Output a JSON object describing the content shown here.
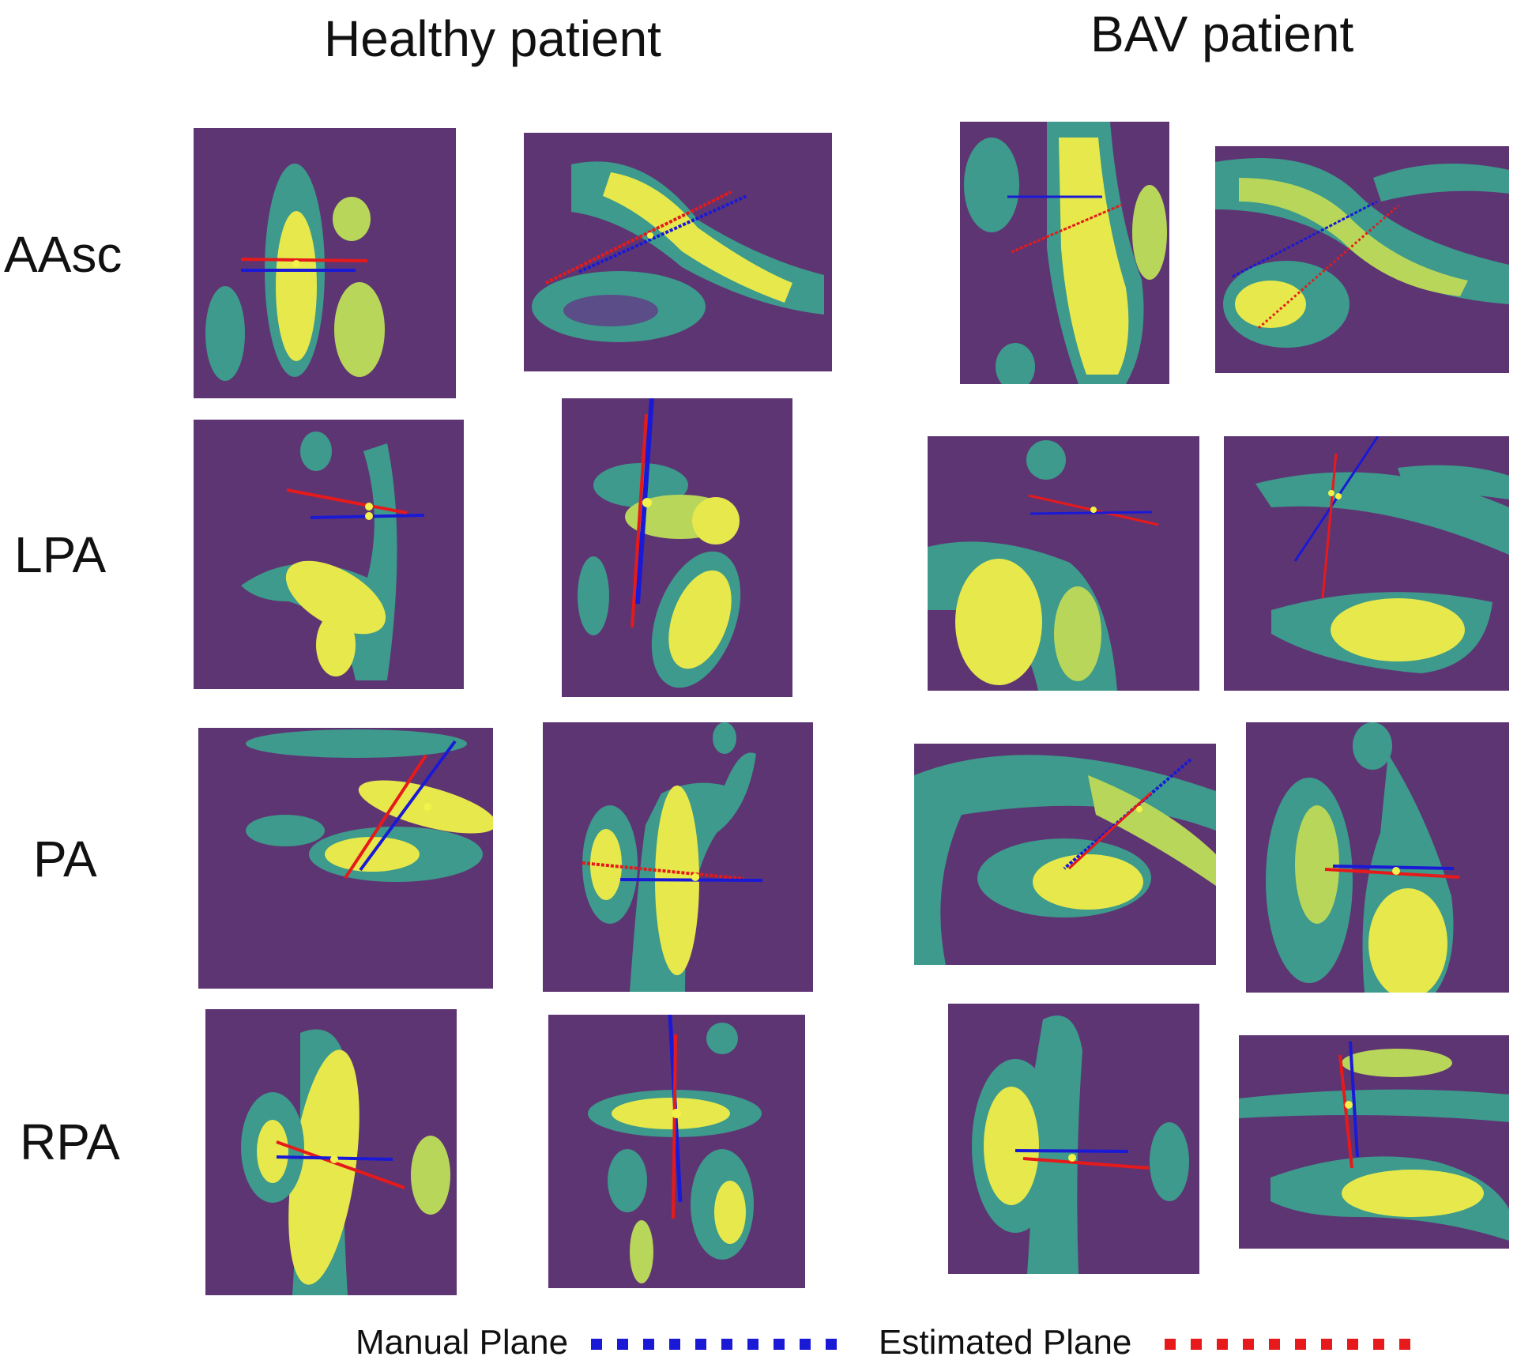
{
  "column_titles": {
    "healthy": "Healthy patient",
    "bav": "BAV patient"
  },
  "row_labels": {
    "aasc": "AAsc",
    "lpa": "LPA",
    "pa": "PA",
    "rpa": "RPA"
  },
  "legend": {
    "manual": {
      "label": "Manual Plane",
      "color": "#1a1ad6"
    },
    "estimated": {
      "label": "Estimated Plane",
      "color": "#e61a1a"
    }
  },
  "colors": {
    "background": "#5e3573",
    "mid": "#3d9a8c",
    "bright": "#e6e84c",
    "center_point": "#f2f24a"
  }
}
